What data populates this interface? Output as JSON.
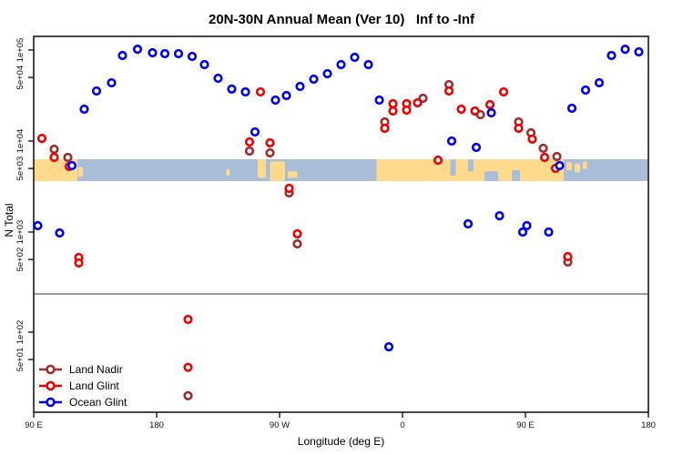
{
  "title": "20N-30N Annual Mean (Ver 10)   Inf to -Inf",
  "x_axis": {
    "label": "Longitude (deg E)",
    "ticks": [
      {
        "lon": 90,
        "label": "90 E"
      },
      {
        "lon": 180,
        "label": "180"
      },
      {
        "lon": 270,
        "label": "90 W"
      },
      {
        "lon": 360,
        "label": "0"
      },
      {
        "lon": 450,
        "label": "90 E"
      },
      {
        "lon": 540,
        "label": "180"
      }
    ]
  },
  "y_axis": {
    "label": "N Total",
    "scale": "log",
    "upper_ticks": [
      {
        "v": 100000,
        "label": "1e+05"
      },
      {
        "v": 50000,
        "label": "5e+04"
      },
      {
        "v": 10000,
        "label": "1e+04"
      },
      {
        "v": 5000,
        "label": "5e+03"
      },
      {
        "v": 1000,
        "label": "1e+03"
      },
      {
        "v": 500,
        "label": "5e+02"
      }
    ],
    "lower_ticks": [
      {
        "v": 100,
        "label": "1e+02"
      },
      {
        "v": 50,
        "label": "5e+01"
      }
    ]
  },
  "legend": [
    {
      "name": "Land Nadir",
      "color": "#a02c2c"
    },
    {
      "name": "Land Glint",
      "color": "#ee0000"
    },
    {
      "name": "Ocean Glint",
      "color": "#0000ee"
    }
  ],
  "map_band": {
    "ocean_color": "#a9bdd8",
    "land_color": "#ffd98c",
    "land_patches": [
      {
        "from": 90,
        "to": 122,
        "t": 0,
        "b": 1
      },
      {
        "from": 122.5,
        "to": 126,
        "t": 0.35,
        "b": 0.8
      },
      {
        "from": 231,
        "to": 233.5,
        "t": 0.45,
        "b": 0.75
      },
      {
        "from": 254,
        "to": 260,
        "t": 0,
        "b": 0.85
      },
      {
        "from": 263,
        "to": 274,
        "t": 0.1,
        "b": 1
      },
      {
        "from": 276,
        "to": 283,
        "t": 0.55,
        "b": 0.85
      },
      {
        "from": 341,
        "to": 478,
        "t": 0,
        "b": 1
      },
      {
        "from": 480,
        "to": 484,
        "t": 0.15,
        "b": 0.5
      },
      {
        "from": 486,
        "to": 490,
        "t": 0.2,
        "b": 0.6
      },
      {
        "from": 492,
        "to": 495,
        "t": 0.1,
        "b": 0.45
      }
    ],
    "ocean_notches": [
      {
        "from": 395,
        "to": 399,
        "t": 0,
        "b": 0.75
      },
      {
        "from": 408,
        "to": 412,
        "t": 0,
        "b": 0.55
      },
      {
        "from": 420,
        "to": 430,
        "t": 0.55,
        "b": 1
      },
      {
        "from": 440,
        "to": 446,
        "t": 0.5,
        "b": 1
      }
    ]
  },
  "chart_data": {
    "type": "scatter",
    "title": "20N-30N Annual Mean (Ver 10)   Inf to -Inf",
    "xlabel": "Longitude (deg E)",
    "ylabel": "N Total",
    "x_range_deg": [
      90,
      540
    ],
    "y_scale": "log10, split panel (upper >= ~300, lower < ~300)",
    "series": [
      {
        "name": "Land Nadir",
        "color": "#a02c2c",
        "points": [
          [
            105,
            8130
          ],
          [
            115,
            6610
          ],
          [
            248,
            7760
          ],
          [
            263,
            7410
          ],
          [
            277,
            2690
          ],
          [
            283,
            741
          ],
          [
            347,
            16200
          ],
          [
            375,
            29500
          ],
          [
            394,
            41700
          ],
          [
            417,
            19500
          ],
          [
            445,
            16200
          ],
          [
            454,
            12300
          ],
          [
            463,
            8320
          ],
          [
            473,
            6760
          ],
          [
            481,
            468
          ],
          [
            203,
            20
          ]
        ]
      },
      {
        "name": "Land Glint",
        "color": "#ee0000",
        "points": [
          [
            96,
            10700
          ],
          [
            105,
            6610
          ],
          [
            116,
            5250
          ],
          [
            123,
            525
          ],
          [
            123,
            457
          ],
          [
            203,
            138
          ],
          [
            203,
            41
          ],
          [
            248,
            9770
          ],
          [
            256,
            34700
          ],
          [
            263,
            9550
          ],
          [
            277,
            3020
          ],
          [
            283,
            955
          ],
          [
            347,
            13800
          ],
          [
            353,
            25700
          ],
          [
            353,
            21400
          ],
          [
            363,
            25700
          ],
          [
            363,
            21900
          ],
          [
            371,
            26300
          ],
          [
            386,
            6170
          ],
          [
            394,
            35500
          ],
          [
            403,
            22400
          ],
          [
            413,
            21400
          ],
          [
            424,
            25100
          ],
          [
            434,
            34700
          ],
          [
            445,
            13800
          ],
          [
            455,
            10500
          ],
          [
            464,
            6610
          ],
          [
            472,
            5010
          ],
          [
            481,
            537
          ]
        ]
      },
      {
        "name": "Ocean Glint",
        "color": "#0000ee",
        "points": [
          [
            93,
            1175
          ],
          [
            109,
            977
          ],
          [
            118,
            5370
          ],
          [
            127,
            22400
          ],
          [
            136,
            35500
          ],
          [
            147,
            43700
          ],
          [
            155,
            87100
          ],
          [
            166,
            102000
          ],
          [
            177,
            93300
          ],
          [
            186,
            91200
          ],
          [
            196,
            91200
          ],
          [
            206,
            85100
          ],
          [
            215,
            69200
          ],
          [
            225,
            49000
          ],
          [
            235,
            37200
          ],
          [
            245,
            34700
          ],
          [
            252,
            12600
          ],
          [
            267,
            28200
          ],
          [
            275,
            31600
          ],
          [
            285,
            39800
          ],
          [
            295,
            47900
          ],
          [
            305,
            55000
          ],
          [
            315,
            69200
          ],
          [
            325,
            83200
          ],
          [
            335,
            69200
          ],
          [
            343,
            28200
          ],
          [
            350,
            69
          ],
          [
            396,
            10000
          ],
          [
            408,
            1230
          ],
          [
            414,
            8510
          ],
          [
            425,
            20400
          ],
          [
            431,
            1510
          ],
          [
            448,
            1000
          ],
          [
            451,
            1175
          ],
          [
            467,
            1000
          ],
          [
            475,
            5370
          ],
          [
            484,
            22900
          ],
          [
            494,
            36300
          ],
          [
            504,
            43700
          ],
          [
            513,
            87100
          ],
          [
            523,
            102000
          ],
          [
            533,
            95500
          ]
        ]
      }
    ]
  }
}
